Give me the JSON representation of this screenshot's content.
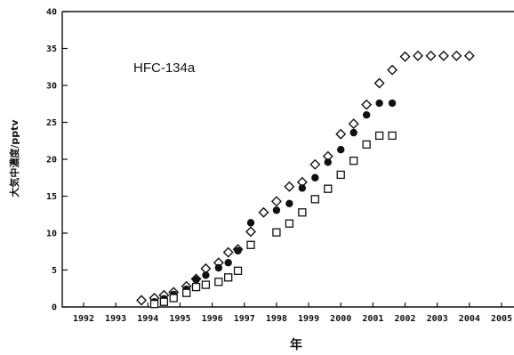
{
  "chart_data": {
    "type": "scatter",
    "title": "",
    "annotation": "HFC-134a",
    "xlabel": "年",
    "ylabel": "大気中濃度/pptv",
    "xlim": [
      1992,
      2005
    ],
    "ylim": [
      0,
      40
    ],
    "xticks": [
      "1992",
      "1993",
      "1994",
      "1995",
      "1996",
      "1997",
      "1998",
      "1999",
      "2000",
      "2001",
      "2002",
      "2003",
      "2004",
      "2005"
    ],
    "yticks": [
      "0",
      "5",
      "10",
      "15",
      "20",
      "25",
      "30",
      "35",
      "40"
    ],
    "grid": false,
    "legend": "none",
    "series": [
      {
        "marker": "open-diamond",
        "x": [
          1993.8,
          1994.2,
          1994.5,
          1994.8,
          1995.2,
          1995.5,
          1995.8,
          1996.2,
          1996.5,
          1996.8,
          1997.2,
          1997.6,
          1998.0,
          1998.4,
          1998.8,
          1999.2,
          1999.6,
          2000.0,
          2000.4,
          2000.8,
          2001.2,
          2001.6,
          2002.0,
          2002.4,
          2002.8,
          2003.2,
          2003.6,
          2004.0
        ],
        "y": [
          0.9,
          1.2,
          1.6,
          2.0,
          2.8,
          3.8,
          5.2,
          6.0,
          7.4,
          7.8,
          10.2,
          12.8,
          14.3,
          16.3,
          16.9,
          19.3,
          20.4,
          23.4,
          24.8,
          27.4,
          30.3,
          32.1,
          33.9,
          34.0,
          34.0,
          34.0,
          34.0,
          34.0
        ]
      },
      {
        "marker": "filled-circle",
        "x": [
          1994.2,
          1994.5,
          1994.8,
          1995.2,
          1995.5,
          1995.8,
          1996.2,
          1996.5,
          1996.8,
          1997.2,
          1998.0,
          1998.4,
          1998.8,
          1999.2,
          1999.6,
          2000.0,
          2000.4,
          2000.8,
          2001.2,
          2001.6
        ],
        "y": [
          0.7,
          1.1,
          1.7,
          2.4,
          3.7,
          4.3,
          5.3,
          6.0,
          7.6,
          11.4,
          13.1,
          14.0,
          16.1,
          17.5,
          19.6,
          21.3,
          23.6,
          26.0,
          27.6,
          27.6
        ]
      },
      {
        "marker": "open-square",
        "x": [
          1994.2,
          1994.5,
          1994.8,
          1995.2,
          1995.5,
          1995.8,
          1996.2,
          1996.5,
          1996.8,
          1997.2,
          1998.0,
          1998.4,
          1998.8,
          1999.2,
          1999.6,
          2000.0,
          2000.4,
          2000.8,
          2001.2,
          2001.6
        ],
        "y": [
          0.4,
          0.7,
          1.2,
          1.9,
          2.7,
          3.0,
          3.4,
          4.0,
          4.9,
          8.4,
          10.1,
          11.3,
          12.8,
          14.6,
          16.0,
          17.9,
          19.8,
          22.0,
          23.2,
          23.2
        ]
      }
    ]
  }
}
